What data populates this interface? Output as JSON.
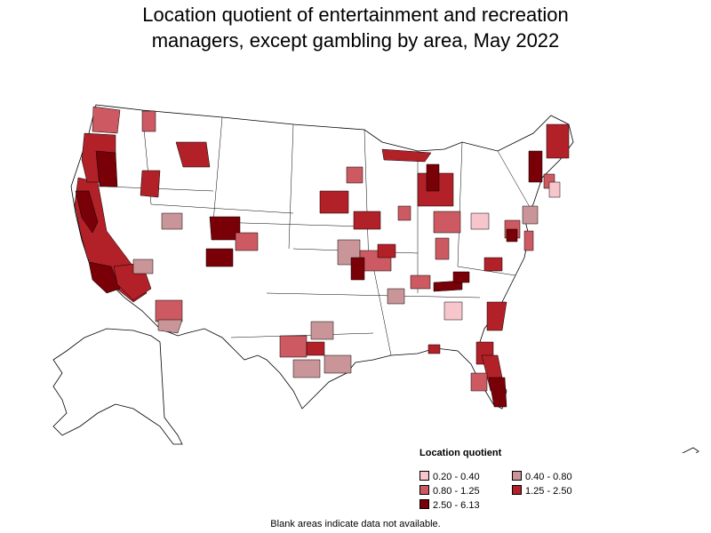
{
  "title_line1": "Location quotient of entertainment and recreation",
  "title_line2": "managers, except gambling by area, May 2022",
  "legend": {
    "title": "Location quotient",
    "items": [
      {
        "label": "0.20 - 0.40",
        "color": "#f7c5cc"
      },
      {
        "label": "0.40 - 0.80",
        "color": "#c99598"
      },
      {
        "label": "0.80 - 1.25",
        "color": "#cd5a62"
      },
      {
        "label": "1.25 - 2.50",
        "color": "#b22028"
      },
      {
        "label": "2.50 - 6.13",
        "color": "#7a0008"
      }
    ]
  },
  "footnote": "Blank areas indicate data not available.",
  "colors": {
    "border": "#000000",
    "blank": "#ffffff"
  }
}
